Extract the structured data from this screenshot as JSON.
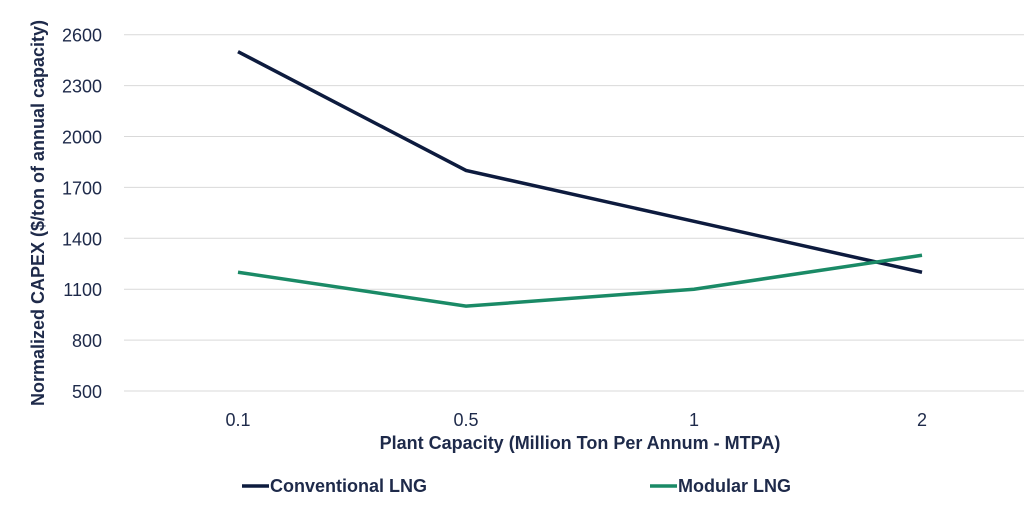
{
  "chart_data": {
    "type": "line",
    "title": "",
    "xlabel": "Plant Capacity (Million Ton Per Annum - MTPA)",
    "ylabel": "Normalized CAPEX ($/ton of annual capacity)",
    "categories": [
      "0.1",
      "0.5",
      "1",
      "2"
    ],
    "yticks": [
      500,
      800,
      1100,
      1400,
      1700,
      2000,
      2300,
      2600
    ],
    "ylim": [
      500,
      2600
    ],
    "grid": true,
    "legend_position": "bottom",
    "series": [
      {
        "name": "Conventional LNG",
        "color": "#0d1b3e",
        "values": [
          2500,
          1800,
          1500,
          1200
        ]
      },
      {
        "name": "Modular LNG",
        "color": "#1a8a66",
        "values": [
          1200,
          1000,
          1100,
          1300
        ]
      }
    ]
  }
}
